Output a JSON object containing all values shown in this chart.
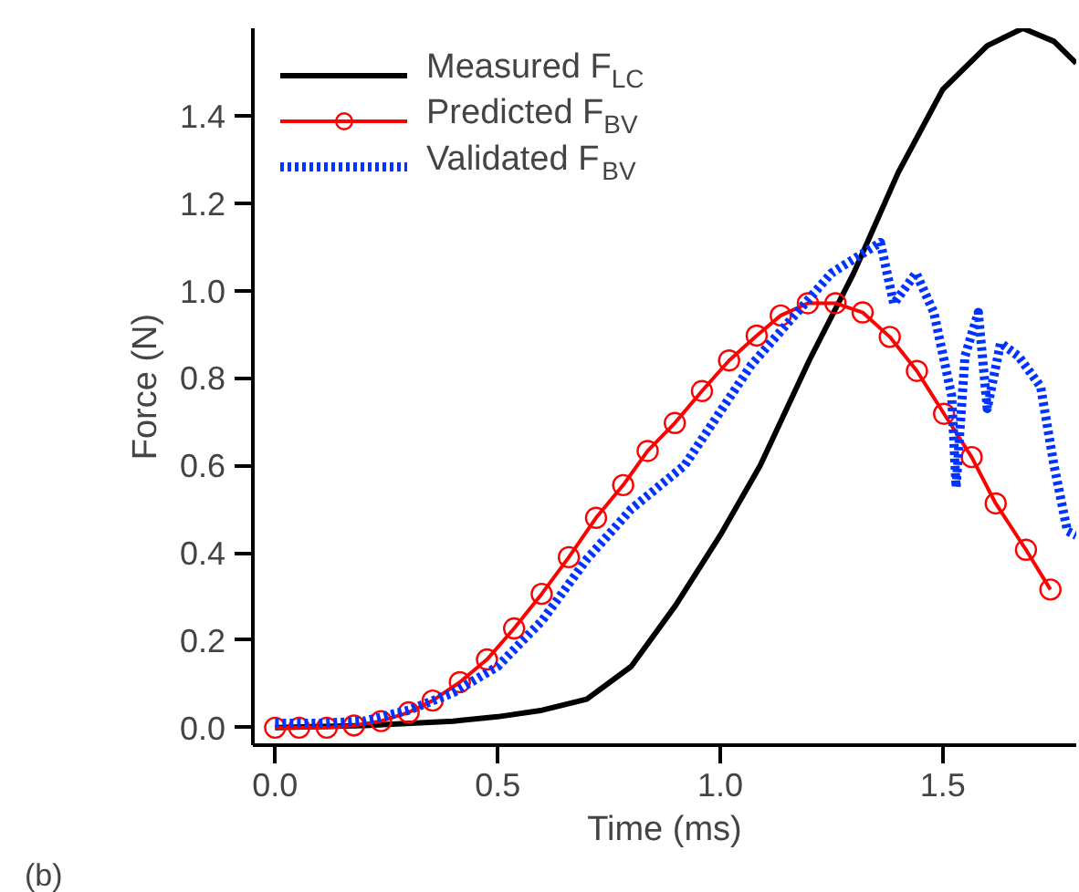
{
  "chart_data": {
    "type": "line",
    "xlabel": "Time (ms)",
    "ylabel": "Force (N)",
    "annotations": [
      "(b)"
    ],
    "xlim": [
      -0.05,
      1.8
    ],
    "ylim": [
      -0.04,
      1.6
    ],
    "xticks": [
      {
        "value": 0,
        "label": "0.0"
      },
      {
        "value": 0.5,
        "label": "0.5"
      },
      {
        "value": 1,
        "label": "1.0"
      },
      {
        "value": 1.5,
        "label": "1.5"
      }
    ],
    "yticks": [
      {
        "value": 0,
        "label": "0.0"
      },
      {
        "value": 0.2,
        "label": "0.2"
      },
      {
        "value": 0.4,
        "label": "0.4"
      },
      {
        "value": 0.6,
        "label": "0.6"
      },
      {
        "value": 0.8,
        "label": "0.8"
      },
      {
        "value": 1,
        "label": "1.0"
      },
      {
        "value": 1.2,
        "label": "1.2"
      },
      {
        "value": 1.4,
        "label": "1.4"
      }
    ],
    "grid": false,
    "legend": "top left",
    "series": [
      {
        "name": "Measured F$_{LC}$",
        "color": "#000000",
        "marker": "none",
        "line_style": "solid",
        "x": [
          0,
          0.2,
          0.4,
          0.5,
          0.6,
          0.7,
          0.8,
          0.9,
          1.0,
          1.09,
          1.2,
          1.3,
          1.4,
          1.5,
          1.6,
          1.68,
          1.75,
          1.8
        ],
        "values": [
          0,
          0.005,
          0.015,
          0.025,
          0.04,
          0.065,
          0.14,
          0.28,
          0.44,
          0.6,
          0.84,
          1.04,
          1.27,
          1.46,
          1.56,
          1.6,
          1.57,
          1.52
        ]
      },
      {
        "name": "Predicted F$_{BV}$",
        "color": "#ff0000",
        "marker": "circle",
        "line_style": "solid",
        "x": [
          0,
          0.054,
          0.116,
          0.177,
          0.238,
          0.3,
          0.354,
          0.415,
          0.476,
          0.537,
          0.599,
          0.66,
          0.721,
          0.782,
          0.837,
          0.898,
          0.959,
          1.02,
          1.082,
          1.136,
          1.197,
          1.259,
          1.32,
          1.381,
          1.442,
          1.503,
          1.565,
          1.619,
          1.687,
          1.742
        ],
        "values": [
          0,
          0,
          0,
          0.005,
          0.015,
          0.035,
          0.062,
          0.104,
          0.156,
          0.227,
          0.306,
          0.39,
          0.48,
          0.555,
          0.633,
          0.697,
          0.77,
          0.84,
          0.897,
          0.943,
          0.971,
          0.971,
          0.95,
          0.894,
          0.816,
          0.718,
          0.619,
          0.513,
          0.407,
          0.316
        ]
      },
      {
        "name": "Validated F$_{BV}$",
        "color": "#0033ff",
        "marker": "none",
        "line_style": "dotted",
        "x": [
          0,
          0.1,
          0.2,
          0.3,
          0.4,
          0.5,
          0.6,
          0.7,
          0.8,
          0.92,
          1.07,
          1.25,
          1.36,
          1.39,
          1.44,
          1.48,
          1.52,
          1.53,
          1.55,
          1.58,
          1.6,
          1.63,
          1.67,
          1.72,
          1.75,
          1.78,
          1.8
        ],
        "values": [
          0.01,
          0.01,
          0.015,
          0.04,
          0.08,
          0.14,
          0.245,
          0.385,
          0.5,
          0.6,
          0.83,
          1.04,
          1.11,
          0.97,
          1.04,
          0.95,
          0.76,
          0.55,
          0.85,
          0.95,
          0.73,
          0.88,
          0.85,
          0.78,
          0.6,
          0.45,
          0.44
        ]
      }
    ]
  }
}
